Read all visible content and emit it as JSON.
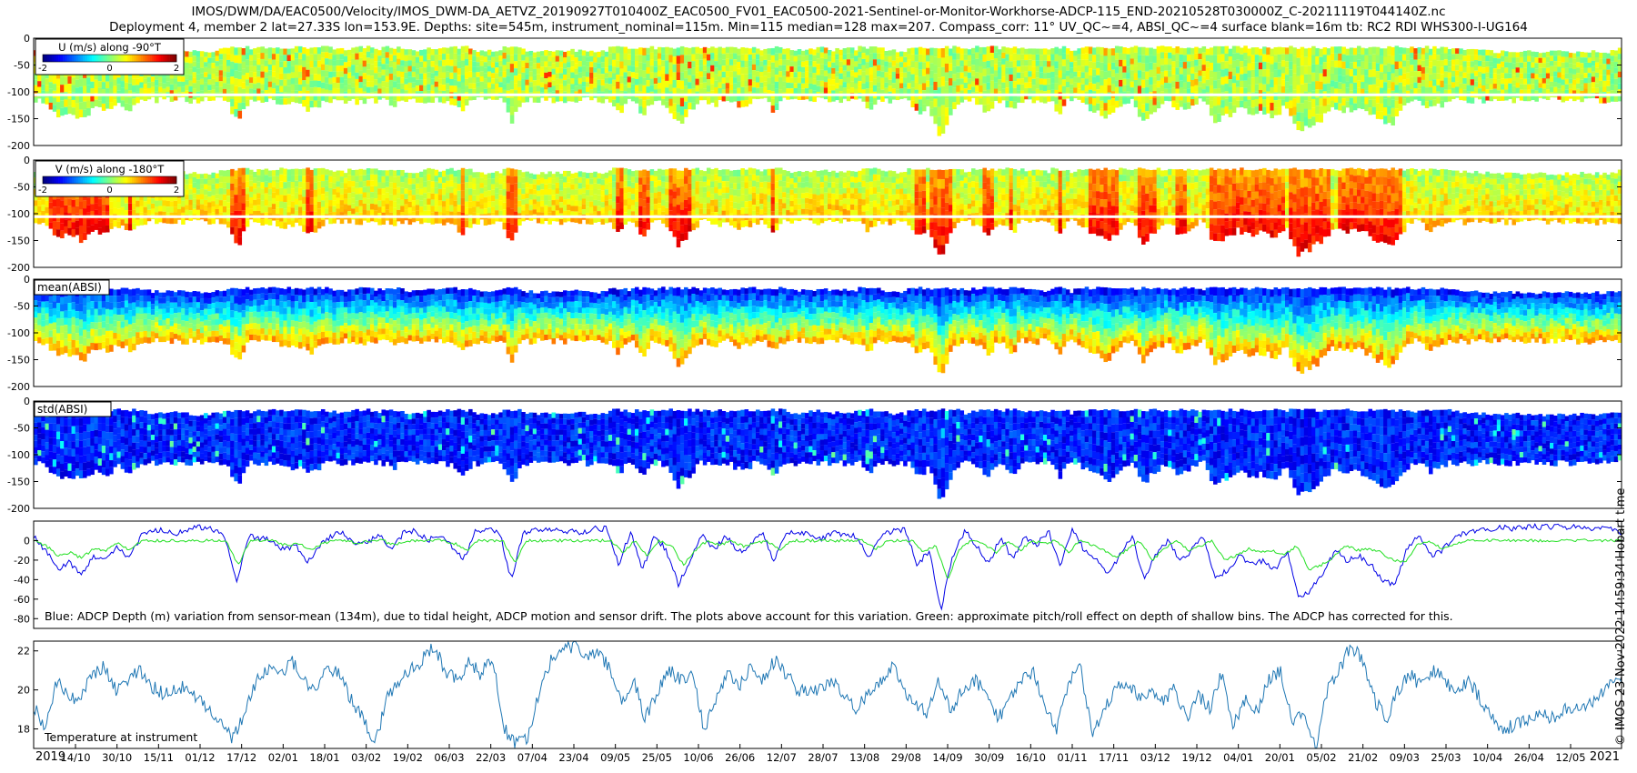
{
  "header": {
    "line1": "IMOS/DWM/DA/EAC0500/Velocity/IMOS_DWM-DA_AETVZ_20190927T010400Z_EAC0500_FV01_EAC0500-2021-Sentinel-or-Monitor-Workhorse-ADCP-115_END-20210528T030000Z_C-20211119T044140Z.nc",
    "line2": "Deployment 4, member 2 lat=27.33S lon=153.9E. Depths: site=545m, instrument_nominal=115m. Min=115 median=128 max=207. Compass_corr: 11° UV_QC~=4, ABSI_QC~=4 surface blank=16m tb: RC2 RDI WHS300-I-UG164"
  },
  "side_note": "© IMOS 23-Nov-2022 14:59:34 Hobart time",
  "colors": {
    "blue_series": "#0000e6",
    "green_series": "#22e022",
    "temp_series": "#1f77b4",
    "frame": "#000000"
  },
  "chart_data": [
    {
      "type": "heatmap",
      "panel": "U",
      "legend_title": "U (m/s) along -90°T",
      "colorbar_ticks": [
        "-2",
        "0",
        "2"
      ],
      "colorbar_range": [
        -2,
        2
      ],
      "colormap": "jet",
      "yticks": [
        "0",
        "-50",
        "-100",
        "-150",
        "-200"
      ],
      "ylim": [
        -200,
        0
      ],
      "dominant_value": 0.3
    },
    {
      "type": "heatmap",
      "panel": "V",
      "legend_title": "V (m/s) along -180°T",
      "colorbar_ticks": [
        "-2",
        "0",
        "2"
      ],
      "colorbar_range": [
        -2,
        2
      ],
      "colormap": "jet",
      "yticks": [
        "0",
        "-50",
        "-100",
        "-150",
        "-200"
      ],
      "ylim": [
        -200,
        0
      ],
      "dominant_value": 1.0
    },
    {
      "type": "heatmap",
      "panel": "mean(ABSI)",
      "legend_title": "mean(ABSI)",
      "colormap": "jet",
      "yticks": [
        "0",
        "-50",
        "-100",
        "-150",
        "-200"
      ],
      "ylim": [
        -200,
        0
      ]
    },
    {
      "type": "heatmap",
      "panel": "std(ABSI)",
      "legend_title": "std(ABSI)",
      "colormap": "jet",
      "yticks": [
        "0",
        "-50",
        "-100",
        "-150",
        "-200"
      ],
      "ylim": [
        -200,
        0
      ]
    },
    {
      "type": "line",
      "panel": "depth",
      "annotation": "Blue: ADCP Depth (m) variation from sensor-mean (134m), due to tidal height, ADCP motion and sensor drift. The plots above account for this variation. Green: approximate pitch/roll effect on depth of shallow bins. The ADCP has corrected for this.",
      "yticks": [
        "0",
        "-20",
        "-40",
        "-60",
        "-80"
      ],
      "ylim": [
        -90,
        20
      ],
      "series": [
        {
          "color": "blue",
          "values": [
            5,
            -10,
            -30,
            -22,
            -35,
            -15,
            -20,
            -5,
            -18,
            5,
            10,
            10,
            8,
            12,
            14,
            12,
            5,
            -45,
            5,
            2,
            0,
            -10,
            -5,
            -22,
            -5,
            5,
            8,
            -5,
            0,
            5,
            -10,
            8,
            10,
            0,
            5,
            -5,
            -20,
            10,
            12,
            10,
            -40,
            8,
            12,
            12,
            10,
            10,
            8,
            12,
            12,
            -25,
            10,
            -30,
            5,
            -10,
            -45,
            -20,
            5,
            -10,
            5,
            -12,
            -5,
            8,
            -20,
            5,
            10,
            5,
            2,
            8,
            5,
            5,
            -18,
            5,
            10,
            12,
            -25,
            -10,
            -70,
            -15,
            10,
            -5,
            -25,
            5,
            -20,
            5,
            -5,
            10,
            -25,
            12,
            -10,
            -20,
            -35,
            -15,
            5,
            -40,
            -15,
            0,
            -20,
            -10,
            5,
            -40,
            -30,
            -15,
            -25,
            -20,
            -30,
            -10,
            -60,
            -50,
            -35,
            -10,
            -20,
            -15,
            -25,
            -40,
            -45,
            -10,
            5,
            -15,
            -10,
            5,
            8,
            10,
            12,
            14,
            12,
            14,
            14,
            14,
            14,
            14,
            12,
            14,
            14,
            5
          ]
        },
        {
          "color": "green",
          "values": [
            0,
            -5,
            -15,
            -12,
            -18,
            -8,
            -10,
            -3,
            -10,
            0,
            0,
            0,
            0,
            0,
            0,
            0,
            0,
            -25,
            0,
            0,
            0,
            -5,
            -3,
            -10,
            -3,
            0,
            0,
            -3,
            0,
            0,
            -5,
            0,
            0,
            0,
            0,
            -3,
            -10,
            0,
            0,
            0,
            -22,
            0,
            0,
            0,
            0,
            0,
            0,
            0,
            0,
            -12,
            0,
            -15,
            0,
            -5,
            -25,
            -10,
            0,
            -5,
            0,
            -6,
            -3,
            0,
            -10,
            0,
            0,
            0,
            0,
            0,
            0,
            0,
            -9,
            0,
            0,
            0,
            -12,
            -5,
            -40,
            -8,
            0,
            -3,
            -12,
            0,
            -10,
            0,
            -3,
            0,
            -12,
            0,
            -5,
            -10,
            -18,
            -8,
            0,
            -20,
            -8,
            0,
            -10,
            -5,
            0,
            -20,
            -15,
            -8,
            -12,
            -10,
            -15,
            -5,
            -30,
            -25,
            -18,
            -5,
            -10,
            -8,
            -12,
            -20,
            -22,
            -5,
            0,
            -8,
            -5,
            0,
            0,
            0,
            0,
            0,
            0,
            0,
            0,
            0,
            0,
            0,
            0,
            0,
            0
          ]
        }
      ]
    },
    {
      "type": "line",
      "panel": "temperature",
      "annotation": "Temperature at instrument",
      "yticks": [
        "18",
        "20",
        "22"
      ],
      "ylim": [
        17,
        22.5
      ],
      "series": [
        {
          "color": "temp",
          "values": [
            19.2,
            18.0,
            20.5,
            19.5,
            19.8,
            20.8,
            21.2,
            20.0,
            20.5,
            21.0,
            20.2,
            19.8,
            20.0,
            20.2,
            19.5,
            19.0,
            18.2,
            17.5,
            19.0,
            20.5,
            21.2,
            20.8,
            21.5,
            20.5,
            20.0,
            21.2,
            20.8,
            19.5,
            18.5,
            17.2,
            19.5,
            20.5,
            21.0,
            21.5,
            22.3,
            21.0,
            20.5,
            21.5,
            20.8,
            21.8,
            18.0,
            17.2,
            17.5,
            20.0,
            21.5,
            22.0,
            22.3,
            21.5,
            22.0,
            21.0,
            19.5,
            20.5,
            18.5,
            19.8,
            21.0,
            20.5,
            20.8,
            18.0,
            19.5,
            21.0,
            20.2,
            21.2,
            20.5,
            21.5,
            20.8,
            20.0,
            19.8,
            20.2,
            20.5,
            19.5,
            19.0,
            20.0,
            20.5,
            21.2,
            20.0,
            19.2,
            18.8,
            20.5,
            19.0,
            20.0,
            20.5,
            19.8,
            18.5,
            19.5,
            20.5,
            21.0,
            19.2,
            18.0,
            20.5,
            21.2,
            17.8,
            19.0,
            20.0,
            20.5,
            19.5,
            20.0,
            19.5,
            20.0,
            18.5,
            19.8,
            19.0,
            20.8,
            18.2,
            19.5,
            18.8,
            20.5,
            21.0,
            18.2,
            19.0,
            17.0,
            20.0,
            21.0,
            22.3,
            21.5,
            19.5,
            18.5,
            20.0,
            20.8,
            20.2,
            21.0,
            20.5,
            19.8,
            20.5,
            19.5,
            18.5,
            18.0,
            18.2,
            18.5,
            18.8,
            18.5,
            19.0,
            19.2,
            19.0,
            19.8,
            20.2,
            20.5
          ]
        }
      ]
    }
  ],
  "time_axis": {
    "date_ticks": [
      "14/10",
      "30/10",
      "15/11",
      "01/12",
      "17/12",
      "02/01",
      "18/01",
      "03/02",
      "19/02",
      "06/03",
      "22/03",
      "07/04",
      "23/04",
      "09/05",
      "25/05",
      "10/06",
      "26/06",
      "12/07",
      "28/07",
      "13/08",
      "29/08",
      "14/09",
      "30/09",
      "16/10",
      "01/11",
      "17/11",
      "03/12",
      "19/12",
      "04/01",
      "20/01",
      "05/02",
      "21/02",
      "09/03",
      "25/03",
      "10/04",
      "26/04",
      "12/05"
    ],
    "year_start": "2019",
    "year_end": "2021"
  }
}
